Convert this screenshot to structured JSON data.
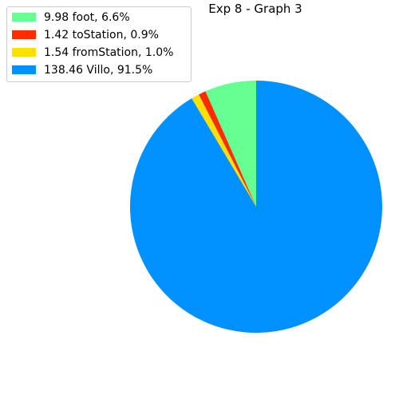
{
  "chart_data": {
    "type": "pie",
    "title": "Exp 8 - Graph 3",
    "start_angle_deg": 90,
    "direction": "counterclockwise",
    "legend_placement": "upper-left",
    "slices": [
      {
        "label": "9.98 foot, 6.6%",
        "value": 9.98,
        "percent": 6.6,
        "color": "#66ff91"
      },
      {
        "label": "1.42 toStation, 0.9%",
        "value": 1.42,
        "percent": 0.9,
        "color": "#ff2c00"
      },
      {
        "label": "1.54 fromStation, 1.0%",
        "value": 1.54,
        "percent": 1.0,
        "color": "#ffe000"
      },
      {
        "label": "138.46 Villo, 91.5%",
        "value": 138.46,
        "percent": 91.5,
        "color": "#0091ff"
      }
    ]
  }
}
